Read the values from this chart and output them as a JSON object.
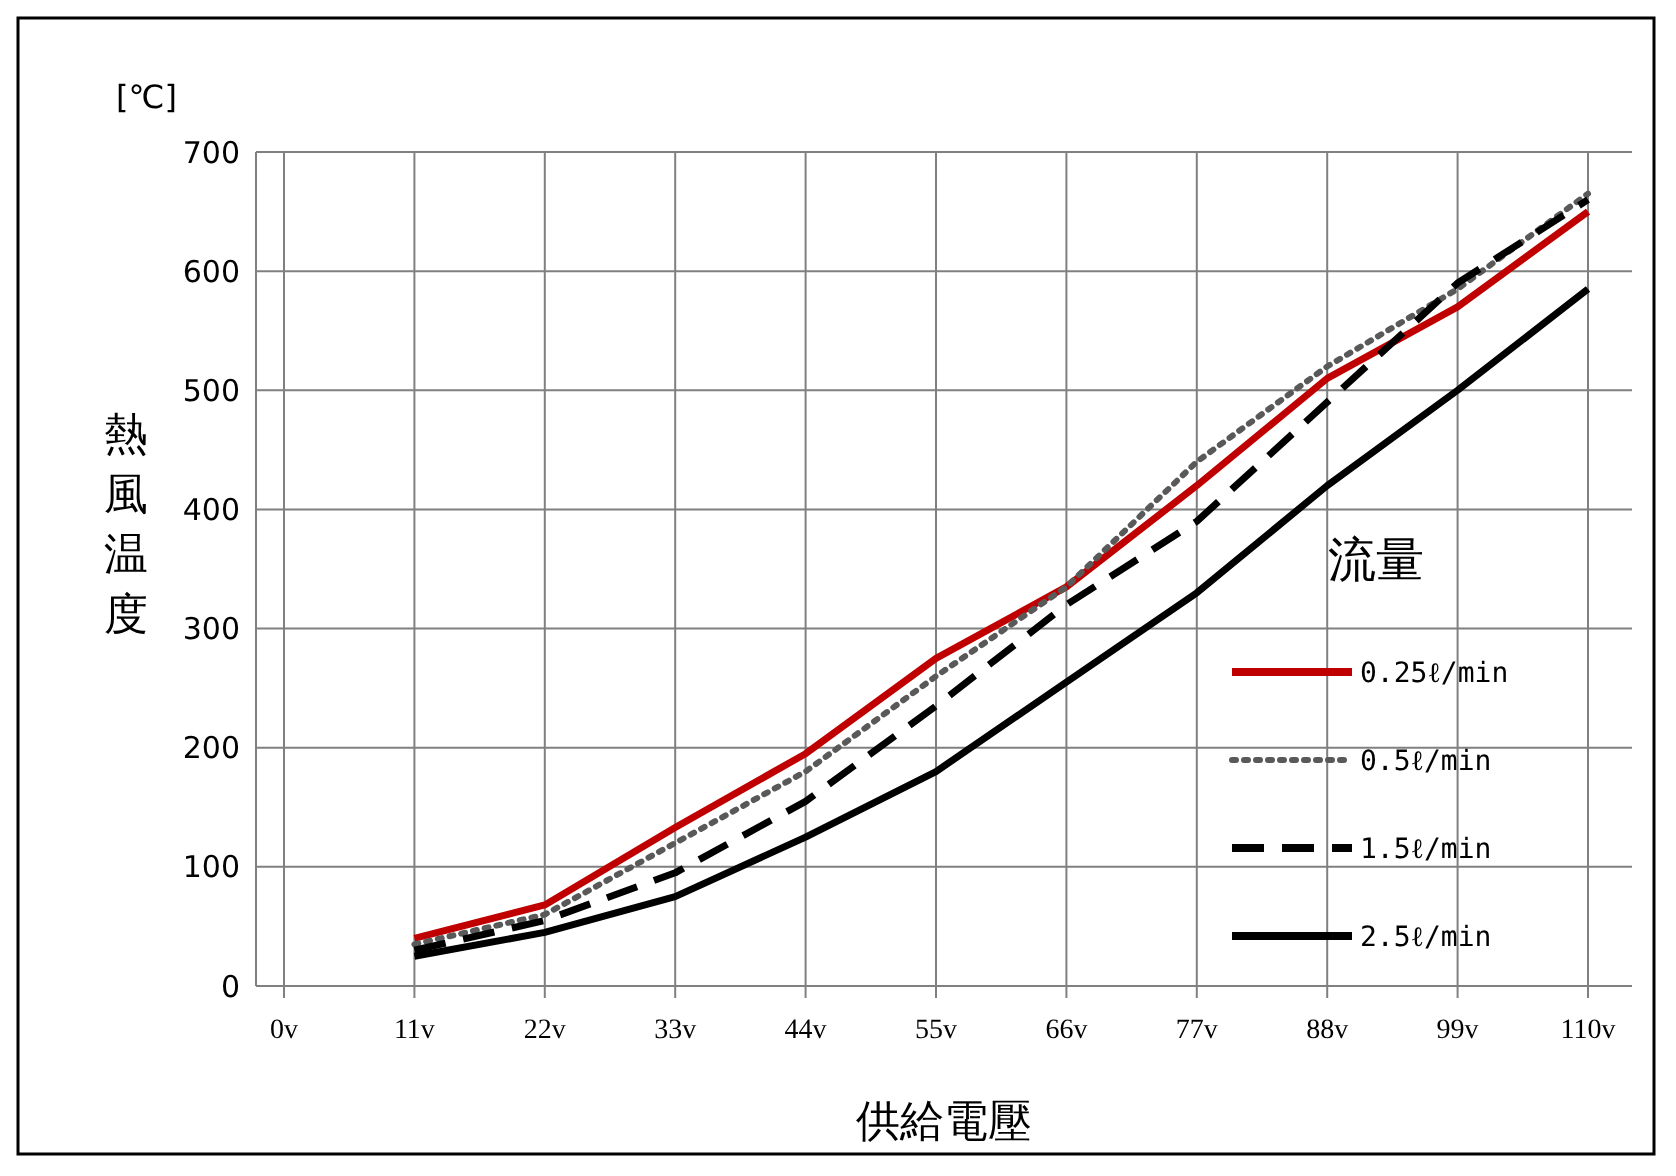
{
  "chart_data": {
    "type": "line",
    "xlabel": "供給電壓",
    "ylabel": "熱風温度",
    "legend_title": "流量",
    "annotations": [
      "[℃]"
    ],
    "categories": [
      "0v",
      "11v",
      "22v",
      "33v",
      "44v",
      "55v",
      "66v",
      "77v",
      "88v",
      "99v",
      "110v"
    ],
    "ylim": [
      0,
      700
    ],
    "yticks": [
      0,
      100,
      200,
      300,
      400,
      500,
      600,
      700
    ],
    "grid": true,
    "legend": "right",
    "series": [
      {
        "name": "0.25ℓ/min",
        "color": "#c00000",
        "line_style": "solid",
        "values": [
          null,
          40,
          68,
          133,
          195,
          275,
          335,
          420,
          510,
          570,
          650
        ]
      },
      {
        "name": "0.5ℓ/min",
        "color": "#595959",
        "line_style": "dotted",
        "values": [
          null,
          35,
          60,
          120,
          180,
          260,
          335,
          440,
          520,
          585,
          665
        ]
      },
      {
        "name": "1.5ℓ/min",
        "color": "#000000",
        "line_style": "dashed",
        "values": [
          null,
          30,
          55,
          95,
          155,
          235,
          320,
          390,
          490,
          590,
          660
        ]
      },
      {
        "name": "2.5ℓ/min",
        "color": "#000000",
        "line_style": "solid",
        "values": [
          null,
          25,
          45,
          75,
          125,
          180,
          255,
          330,
          420,
          500,
          585
        ]
      }
    ]
  }
}
